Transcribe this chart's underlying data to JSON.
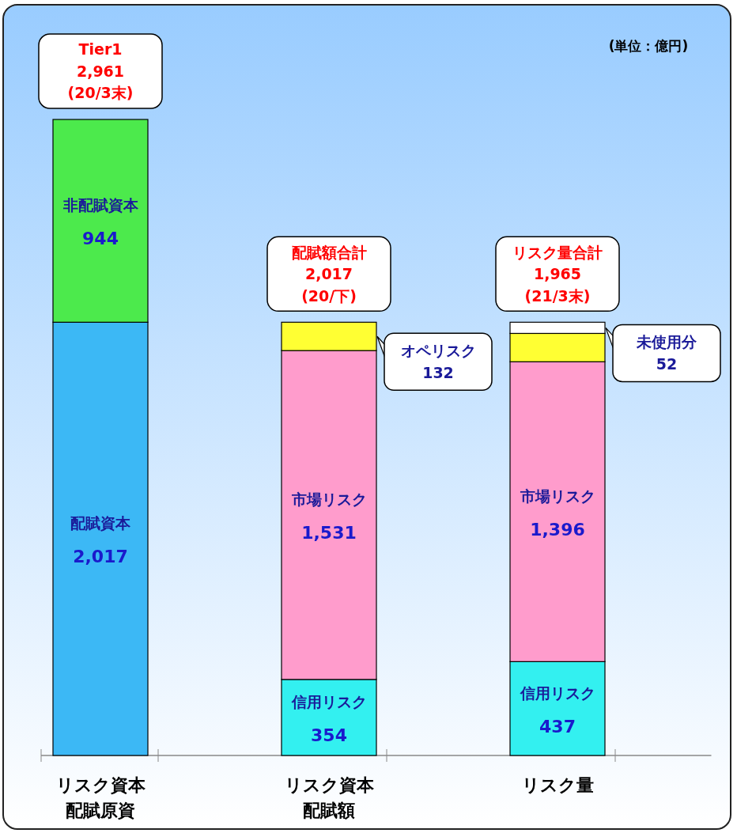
{
  "chart_data": {
    "type": "bar",
    "stacked": true,
    "categories": [
      "リスク資本配賦原資",
      "リスク資本配賦額",
      "リスク量"
    ],
    "series": [
      {
        "name": "配賦資本",
        "color": "#3cb8f5",
        "values": [
          2017,
          null,
          null
        ],
        "value_labels": [
          "2,017",
          null,
          null
        ]
      },
      {
        "name": "非配賦資本",
        "color": "#4cea4c",
        "values": [
          944,
          null,
          null
        ],
        "value_labels": [
          "944",
          null,
          null
        ]
      },
      {
        "name": "信用リスク",
        "color": "#33f0f0",
        "values": [
          null,
          354,
          437
        ],
        "value_labels": [
          null,
          "354",
          "437"
        ]
      },
      {
        "name": "市場リスク",
        "color": "#ff9ccc",
        "values": [
          null,
          1531,
          1396
        ],
        "value_labels": [
          null,
          "1,531",
          "1,396"
        ]
      },
      {
        "color": "#ffff33",
        "values": [
          null,
          132,
          132
        ]
      },
      {
        "color": "#ffffff",
        "values": [
          null,
          null,
          52
        ]
      }
    ],
    "annotations": [
      "(単位：億円)",
      "オペリスク\n132",
      "未使用分\n52",
      {
        "text": "Tier1\n2,961\n(20/3末)",
        "x": "リスク資本配賦原資",
        "y": 2961
      },
      {
        "text": "配賦額合計\n2,017\n(20/下)",
        "x": "リスク資本配賦額",
        "y": 2017
      },
      {
        "text": "リスク量合計\n1,965\n(21/3末)",
        "x": "リスク量",
        "y": 2017
      }
    ],
    "legend": false
  }
}
